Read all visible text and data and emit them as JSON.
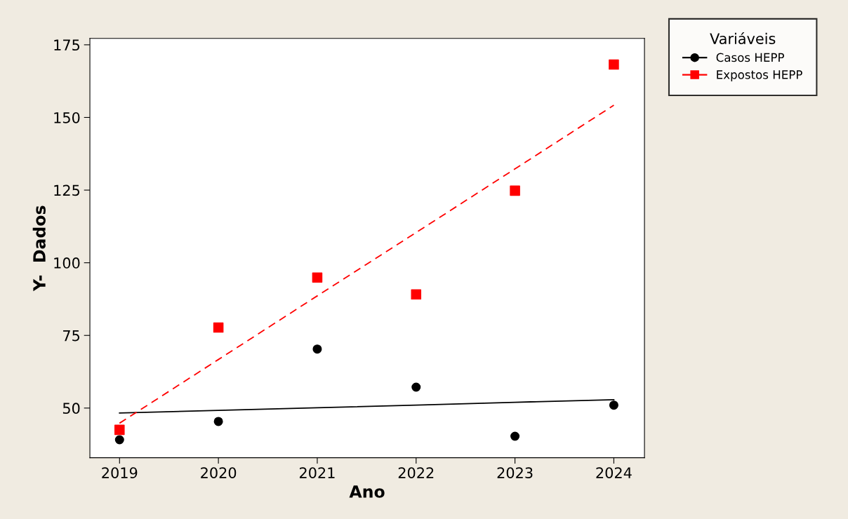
{
  "chart_data": {
    "type": "scatter",
    "xlabel": "Ano",
    "ylabel": "Y-  Dados",
    "legend_title": "Variáveis",
    "legend": "top right",
    "x": [
      2019,
      2020,
      2021,
      2022,
      2023,
      2024
    ],
    "xlim": [
      2018.7,
      2024.31
    ],
    "xticks": [
      2019,
      2020,
      2021,
      2022,
      2023,
      2024
    ],
    "ylim": [
      32.9,
      177.2
    ],
    "yticks": [
      50,
      75,
      100,
      125,
      150,
      175
    ],
    "grid": false,
    "series": [
      {
        "name": "Casos HEPP",
        "color": "#000000",
        "marker": "circle",
        "values": [
          39.1,
          45.4,
          70.3,
          57.2,
          40.3,
          51.0
        ]
      },
      {
        "name": "Expostos HEPP",
        "color": "#ff0000",
        "marker": "square",
        "values": [
          42.5,
          77.7,
          94.9,
          89.1,
          124.8,
          168.2
        ]
      },
      {
        "type": "line",
        "color": "#000000",
        "line_style": "solid",
        "values": [
          48.3,
          49.2,
          50.1,
          51.0,
          52.0,
          52.9
        ]
      },
      {
        "type": "line",
        "color": "#ff0000",
        "line_style": "dashed",
        "values": [
          44.8,
          66.7,
          88.6,
          110.4,
          132.3,
          154.2
        ]
      }
    ]
  }
}
